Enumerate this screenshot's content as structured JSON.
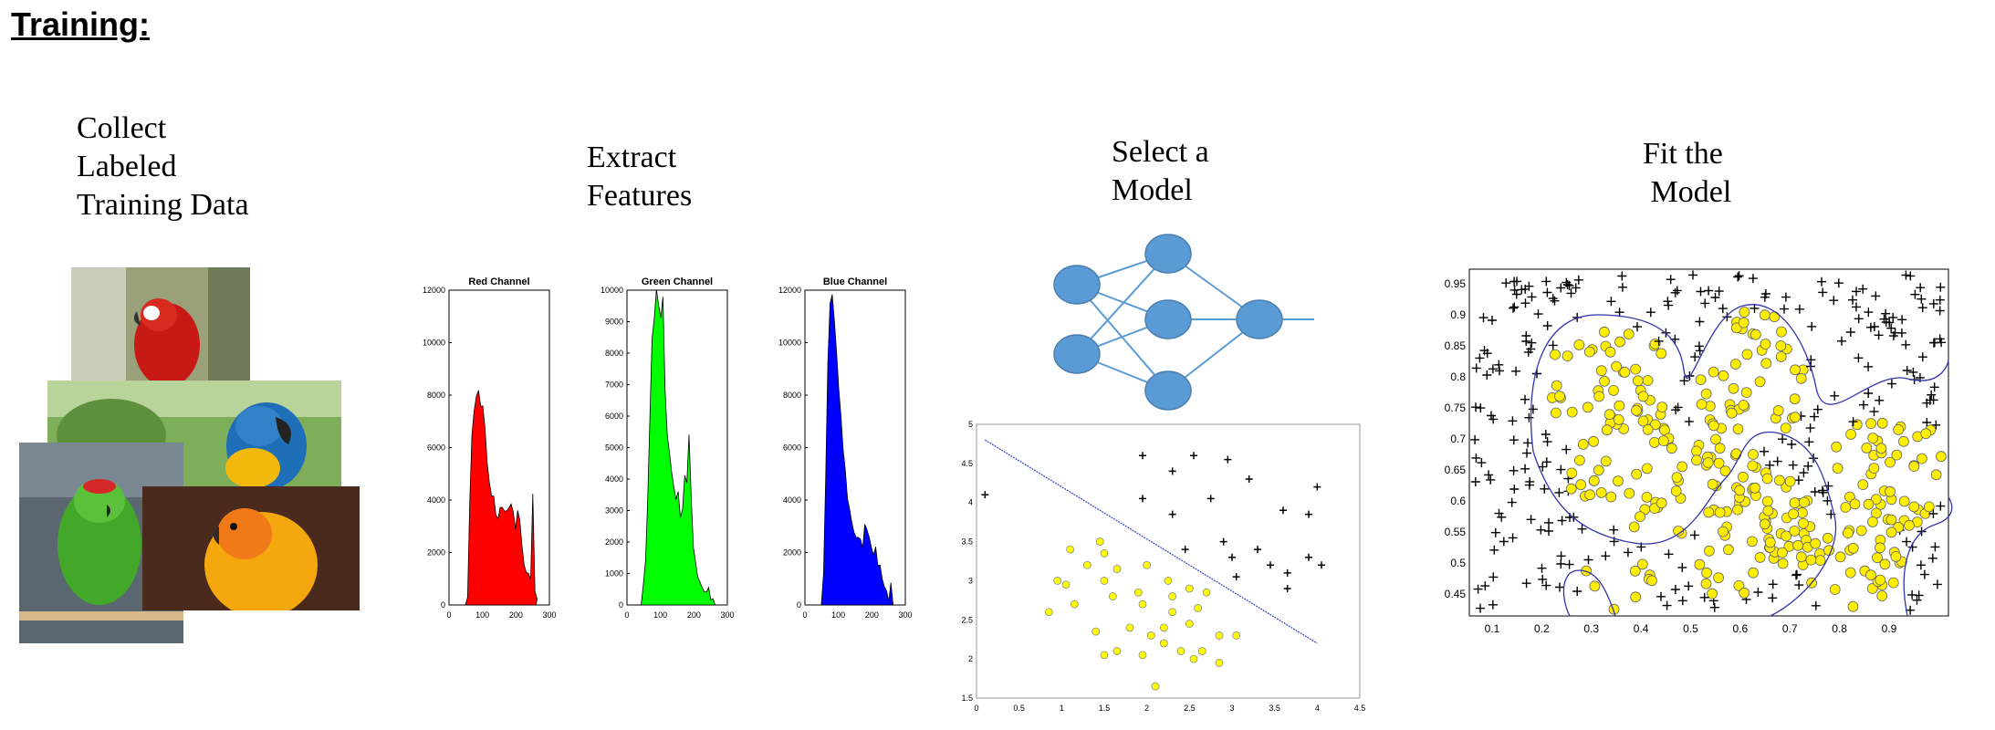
{
  "heading": "Training:",
  "stages": [
    {
      "lines": [
        "Collect",
        "Labeled",
        "Training Data"
      ]
    },
    {
      "lines": [
        "Extract",
        "Features"
      ]
    },
    {
      "lines": [
        "Select a",
        "Model"
      ]
    },
    {
      "lines": [
        "Fit the",
        " Model"
      ]
    }
  ],
  "histograms": [
    {
      "title": "Red Channel",
      "color": "#ff0000",
      "yticks": [
        "12000",
        "10000",
        "8000",
        "6000",
        "4000",
        "2000",
        "0"
      ],
      "ymax": 12000,
      "xticks": [
        "0",
        "100",
        "200",
        "300"
      ]
    },
    {
      "title": "Green Channel",
      "color": "#00ff00",
      "yticks": [
        "10000",
        "9000",
        "8000",
        "7000",
        "6000",
        "5000",
        "4000",
        "3000",
        "2000",
        "1000",
        "0"
      ],
      "ymax": 10000,
      "xticks": [
        "0",
        "100",
        "200",
        "300"
      ]
    },
    {
      "title": "Blue Channel",
      "color": "#0000ff",
      "yticks": [
        "12000",
        "10000",
        "8000",
        "6000",
        "4000",
        "2000",
        "0"
      ],
      "ymax": 12000,
      "xticks": [
        "0",
        "100",
        "200",
        "300"
      ]
    }
  ],
  "nn": {
    "node_color": "#5b9bd5",
    "layers": [
      2,
      3,
      1
    ]
  },
  "chart_data": [
    {
      "type": "scatter",
      "xlim": [
        0,
        4.5
      ],
      "ylim": [
        1.5,
        5
      ],
      "xticks": [
        "0",
        "0.5",
        "1",
        "1.5",
        "2",
        "2.5",
        "3",
        "3.5",
        "4",
        "4.5"
      ],
      "yticks": [
        "5",
        "4.5",
        "4",
        "3.5",
        "3",
        "2.5",
        "2",
        "1.5"
      ],
      "boundary": [
        [
          0.1,
          4.8
        ],
        [
          4.0,
          2.2
        ]
      ],
      "series": [
        {
          "marker": "plus",
          "color": "#000000",
          "points": [
            [
              0.1,
              4.1
            ],
            [
              1.95,
              4.6
            ],
            [
              2.55,
              4.6
            ],
            [
              2.95,
              4.55
            ],
            [
              2.3,
              4.4
            ],
            [
              3.2,
              4.3
            ],
            [
              4.0,
              4.2
            ],
            [
              1.95,
              4.05
            ],
            [
              2.3,
              3.85
            ],
            [
              2.75,
              4.05
            ],
            [
              3.6,
              3.9
            ],
            [
              3.9,
              3.85
            ],
            [
              2.45,
              3.4
            ],
            [
              2.9,
              3.5
            ],
            [
              3.3,
              3.4
            ],
            [
              3.0,
              3.3
            ],
            [
              3.45,
              3.2
            ],
            [
              3.9,
              3.3
            ],
            [
              4.05,
              3.2
            ],
            [
              3.05,
              3.05
            ],
            [
              3.65,
              3.1
            ],
            [
              3.65,
              2.9
            ]
          ]
        },
        {
          "marker": "circle",
          "color": "#ffff00",
          "points": [
            [
              1.45,
              3.5
            ],
            [
              1.1,
              3.4
            ],
            [
              1.5,
              3.35
            ],
            [
              1.3,
              3.2
            ],
            [
              1.65,
              3.15
            ],
            [
              2.0,
              3.2
            ],
            [
              0.95,
              3.0
            ],
            [
              1.05,
              2.95
            ],
            [
              1.5,
              3.0
            ],
            [
              2.25,
              3.0
            ],
            [
              2.5,
              2.9
            ],
            [
              2.7,
              2.85
            ],
            [
              1.15,
              2.7
            ],
            [
              1.6,
              2.8
            ],
            [
              1.9,
              2.85
            ],
            [
              2.3,
              2.8
            ],
            [
              0.85,
              2.6
            ],
            [
              1.95,
              2.7
            ],
            [
              2.3,
              2.6
            ],
            [
              2.6,
              2.65
            ],
            [
              1.8,
              2.4
            ],
            [
              2.2,
              2.4
            ],
            [
              2.5,
              2.45
            ],
            [
              1.4,
              2.35
            ],
            [
              2.05,
              2.3
            ],
            [
              2.85,
              2.3
            ],
            [
              3.05,
              2.3
            ],
            [
              1.65,
              2.1
            ],
            [
              2.2,
              2.2
            ],
            [
              2.4,
              2.1
            ],
            [
              2.65,
              2.1
            ],
            [
              1.5,
              2.05
            ],
            [
              1.95,
              2.05
            ],
            [
              2.55,
              2.0
            ],
            [
              2.85,
              1.95
            ],
            [
              2.1,
              1.65
            ]
          ]
        }
      ]
    },
    {
      "type": "scatter",
      "xlim": [
        0.05,
        1.0
      ],
      "ylim": [
        0.41,
        0.98
      ],
      "xticks": [
        "0.1",
        "0.2",
        "0.3",
        "0.4",
        "0.5",
        "0.6",
        "0.7",
        "0.8",
        "0.9"
      ],
      "yticks": [
        "0.95",
        "0.9",
        "0.85",
        "0.8",
        "0.75",
        "0.7",
        "0.65",
        "0.6",
        "0.55",
        "0.5",
        "0.45"
      ],
      "series": [
        {
          "marker": "plus",
          "color": "#000000",
          "name": ""
        },
        {
          "marker": "circle",
          "color": "#ffff00",
          "name": ""
        }
      ],
      "boundary_color": "#3333aa"
    }
  ]
}
